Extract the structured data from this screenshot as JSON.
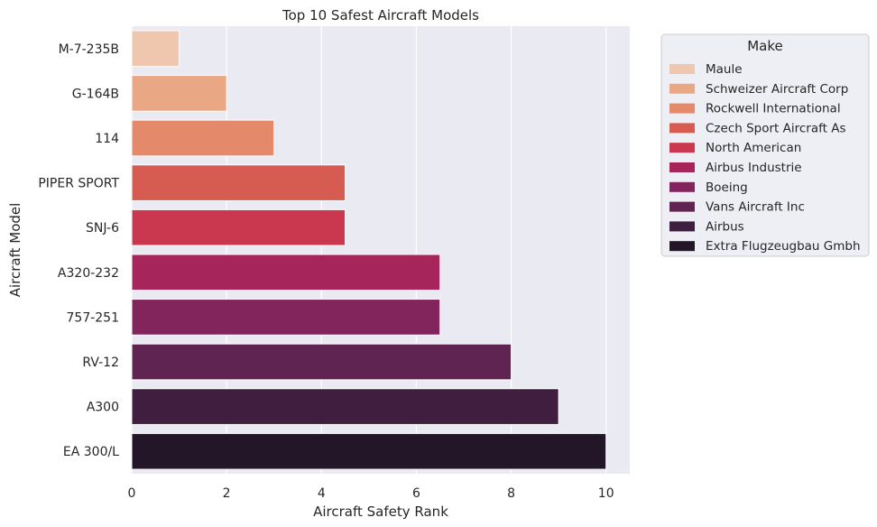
{
  "chart_data": {
    "type": "bar",
    "orientation": "horizontal",
    "title": "Top 10 Safest Aircraft Models",
    "xlabel": "Aircraft Safety Rank",
    "ylabel": "Aircraft Model",
    "xlim": [
      0,
      10.5
    ],
    "xticks": [
      0,
      2,
      4,
      6,
      8,
      10
    ],
    "grid": true,
    "categories": [
      "M-7-235B",
      "G-164B",
      "114",
      "PIPER SPORT",
      "SNJ-6",
      "A320-232",
      "757-251",
      "RV-12",
      "A300",
      "EA 300/L"
    ],
    "values": [
      1,
      2,
      3,
      4.5,
      4.5,
      6.5,
      6.5,
      8,
      9,
      10
    ],
    "hue": [
      "Maule",
      "Schweizer Aircraft Corp",
      "Rockwell International",
      "Czech Sport Aircraft As",
      "North American",
      "Airbus Industrie",
      "Boeing",
      "Vans Aircraft Inc",
      "Airbus",
      "Extra Flugzeugbau Gmbh"
    ],
    "colors": [
      "#efc7ae",
      "#eaa784",
      "#e4896a",
      "#d65c52",
      "#c9384f",
      "#a6265b",
      "#82255d",
      "#5f2451",
      "#3f1e3f",
      "#231629"
    ],
    "legend": {
      "title": "Make",
      "placement": "outside-right",
      "entries": [
        "Maule",
        "Schweizer Aircraft Corp",
        "Rockwell International",
        "Czech Sport Aircraft As",
        "North American",
        "Airbus Industrie",
        "Boeing",
        "Vans Aircraft Inc",
        "Airbus",
        "Extra Flugzeugbau Gmbh"
      ]
    },
    "background": "#eaeaf2"
  }
}
